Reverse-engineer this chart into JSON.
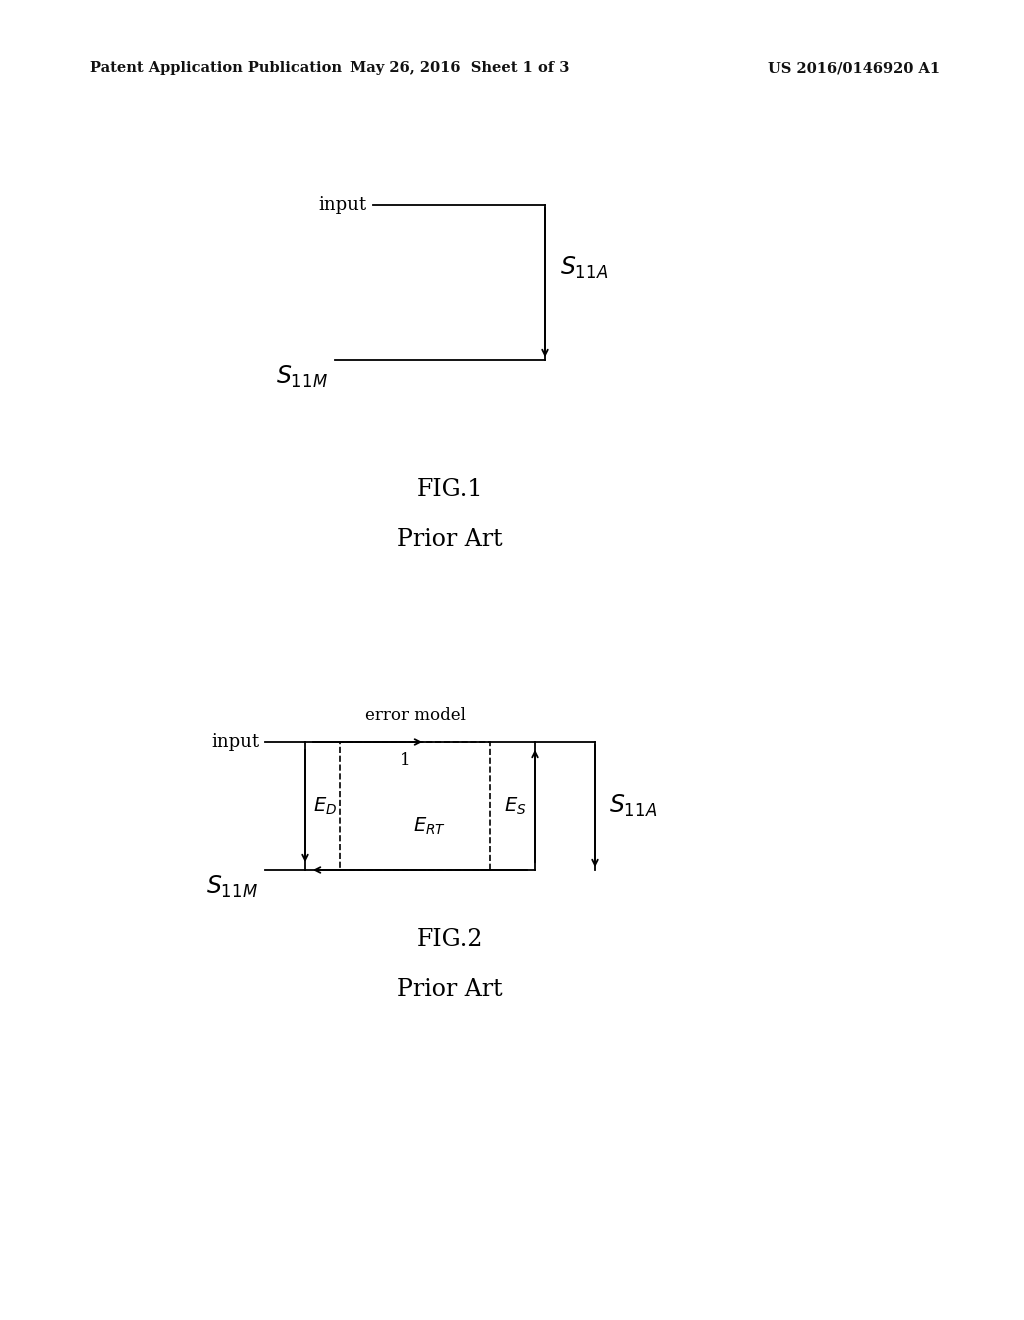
{
  "bg_color": "#ffffff",
  "header_left": "Patent Application Publication",
  "header_center": "May 26, 2016  Sheet 1 of 3",
  "header_right": "US 2016/0146920 A1",
  "fig1_label": "FIG.1",
  "fig1_sublabel": "Prior Art",
  "fig2_label": "FIG.2",
  "fig2_sublabel": "Prior Art"
}
